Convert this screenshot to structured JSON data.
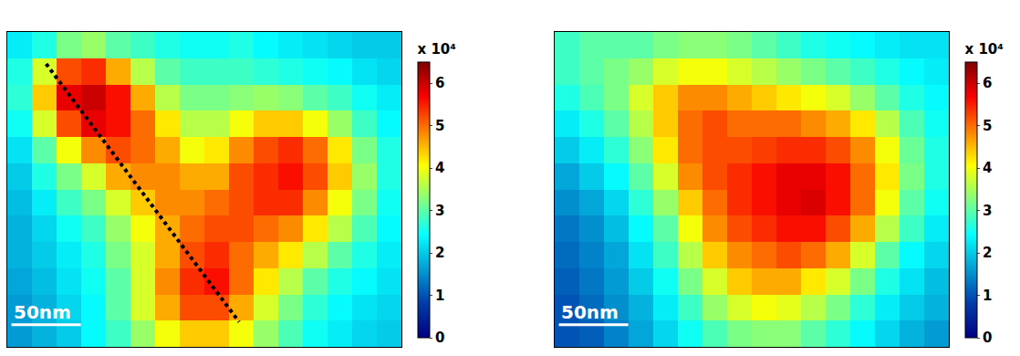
{
  "chart_data": [
    {
      "type": "heatmap",
      "color": "Jet",
      "tick_labels": false,
      "xlim": [
        0,
        284
      ],
      "ylim": [
        227,
        0
      ],
      "zlim": [
        0,
        6.5
      ],
      "zticks": [
        0,
        1,
        2,
        3,
        4,
        5,
        6
      ],
      "colorbar_title": "x 10⁴",
      "scale_bar": {
        "label": "50nm",
        "length": 50
      },
      "line": {
        "x": [
          28,
          167
        ],
        "y": [
          23,
          209
        ],
        "line_style": "dotted"
      },
      "z": [
        [
          2.3,
          2.6,
          3.2,
          3.4,
          3.0,
          2.8,
          2.6,
          2.5,
          2.5,
          2.6,
          2.4,
          2.3,
          2.2,
          2.1,
          2.0,
          2.0
        ],
        [
          2.6,
          3.8,
          5.2,
          5.4,
          4.6,
          3.6,
          3.0,
          2.8,
          2.8,
          2.8,
          2.7,
          2.6,
          2.5,
          2.4,
          2.2,
          2.1
        ],
        [
          2.7,
          4.4,
          5.8,
          6.0,
          5.6,
          4.6,
          3.6,
          3.2,
          3.2,
          3.3,
          3.4,
          3.3,
          3.0,
          2.8,
          2.5,
          2.3
        ],
        [
          2.5,
          3.8,
          5.2,
          5.8,
          5.6,
          5.0,
          4.2,
          3.6,
          3.6,
          4.0,
          4.4,
          4.4,
          4.0,
          3.4,
          2.8,
          2.4
        ],
        [
          2.2,
          3.0,
          4.0,
          4.8,
          5.2,
          5.0,
          4.6,
          4.0,
          4.2,
          4.8,
          5.2,
          5.4,
          5.0,
          4.2,
          3.2,
          2.6
        ],
        [
          2.0,
          2.6,
          3.2,
          3.8,
          4.6,
          4.8,
          4.8,
          4.6,
          4.6,
          5.2,
          5.4,
          5.6,
          5.2,
          4.4,
          3.4,
          2.6
        ],
        [
          1.9,
          2.3,
          2.8,
          3.2,
          3.8,
          4.4,
          4.8,
          4.8,
          5.0,
          5.2,
          5.4,
          5.4,
          4.8,
          4.0,
          3.2,
          2.5
        ],
        [
          1.8,
          2.1,
          2.5,
          2.8,
          3.4,
          4.0,
          4.6,
          5.0,
          5.2,
          5.2,
          5.0,
          4.8,
          4.2,
          3.6,
          2.9,
          2.4
        ],
        [
          1.8,
          2.0,
          2.3,
          2.6,
          3.2,
          3.8,
          4.6,
          5.2,
          5.4,
          5.0,
          4.6,
          4.2,
          3.6,
          3.0,
          2.6,
          2.3
        ],
        [
          1.7,
          1.9,
          2.2,
          2.5,
          3.0,
          3.8,
          4.8,
          5.4,
          5.6,
          5.0,
          4.2,
          3.6,
          3.0,
          2.6,
          2.4,
          2.2
        ],
        [
          1.6,
          1.8,
          2.1,
          2.4,
          3.0,
          3.8,
          4.6,
          5.2,
          5.2,
          4.6,
          3.8,
          3.2,
          2.7,
          2.4,
          2.2,
          2.1
        ],
        [
          1.6,
          1.8,
          2.0,
          2.4,
          2.8,
          3.4,
          4.0,
          4.4,
          4.4,
          4.0,
          3.4,
          2.9,
          2.5,
          2.3,
          2.1,
          2.0
        ]
      ]
    },
    {
      "type": "heatmap",
      "color": "Jet",
      "tick_labels": false,
      "xlim": [
        0,
        284
      ],
      "ylim": [
        227,
        0
      ],
      "zlim": [
        0,
        6.5
      ],
      "zticks": [
        0,
        1,
        2,
        3,
        4,
        5,
        6
      ],
      "colorbar_title": "x 10⁴",
      "scale_bar": {
        "label": "50nm",
        "length": 50
      },
      "z": [
        [
          2.8,
          3.0,
          3.0,
          3.0,
          3.2,
          3.3,
          3.3,
          3.2,
          3.0,
          2.8,
          2.6,
          2.5,
          2.4,
          2.3,
          2.2,
          2.2
        ],
        [
          2.8,
          3.0,
          3.2,
          3.4,
          3.8,
          4.0,
          4.0,
          3.8,
          3.6,
          3.4,
          3.2,
          3.0,
          2.8,
          2.6,
          2.4,
          2.3
        ],
        [
          2.6,
          2.9,
          3.2,
          3.8,
          4.4,
          4.8,
          4.8,
          4.6,
          4.4,
          4.2,
          4.0,
          3.8,
          3.4,
          3.0,
          2.6,
          2.4
        ],
        [
          2.3,
          2.6,
          3.0,
          3.6,
          4.4,
          5.0,
          5.2,
          5.0,
          5.0,
          5.0,
          4.8,
          4.6,
          4.2,
          3.6,
          2.9,
          2.5
        ],
        [
          2.0,
          2.3,
          2.7,
          3.3,
          4.2,
          5.0,
          5.2,
          5.2,
          5.3,
          5.4,
          5.4,
          5.2,
          4.8,
          4.0,
          3.1,
          2.6
        ],
        [
          1.7,
          2.0,
          2.4,
          3.0,
          3.8,
          4.8,
          5.2,
          5.4,
          5.6,
          5.8,
          5.8,
          5.6,
          5.0,
          4.2,
          3.2,
          2.6
        ],
        [
          1.5,
          1.7,
          2.1,
          2.7,
          3.4,
          4.4,
          5.0,
          5.4,
          5.6,
          5.8,
          5.9,
          5.6,
          5.0,
          4.0,
          3.0,
          2.5
        ],
        [
          1.3,
          1.5,
          1.9,
          2.4,
          3.0,
          4.0,
          4.8,
          5.2,
          5.4,
          5.6,
          5.6,
          5.2,
          4.6,
          3.6,
          2.8,
          2.3
        ],
        [
          1.2,
          1.4,
          1.7,
          2.2,
          2.8,
          3.6,
          4.4,
          4.8,
          5.0,
          5.2,
          5.0,
          4.6,
          3.8,
          3.0,
          2.4,
          2.1
        ],
        [
          1.1,
          1.3,
          1.6,
          2.0,
          2.5,
          3.2,
          3.8,
          4.4,
          4.6,
          4.6,
          4.2,
          3.8,
          3.2,
          2.6,
          2.2,
          1.9
        ],
        [
          1.0,
          1.2,
          1.5,
          1.8,
          2.3,
          2.8,
          3.4,
          3.8,
          4.0,
          3.9,
          3.6,
          3.2,
          2.7,
          2.3,
          2.0,
          1.8
        ],
        [
          1.0,
          1.1,
          1.4,
          1.7,
          2.1,
          2.5,
          2.9,
          3.2,
          3.3,
          3.3,
          3.0,
          2.7,
          2.4,
          2.1,
          1.8,
          1.6
        ]
      ]
    }
  ]
}
